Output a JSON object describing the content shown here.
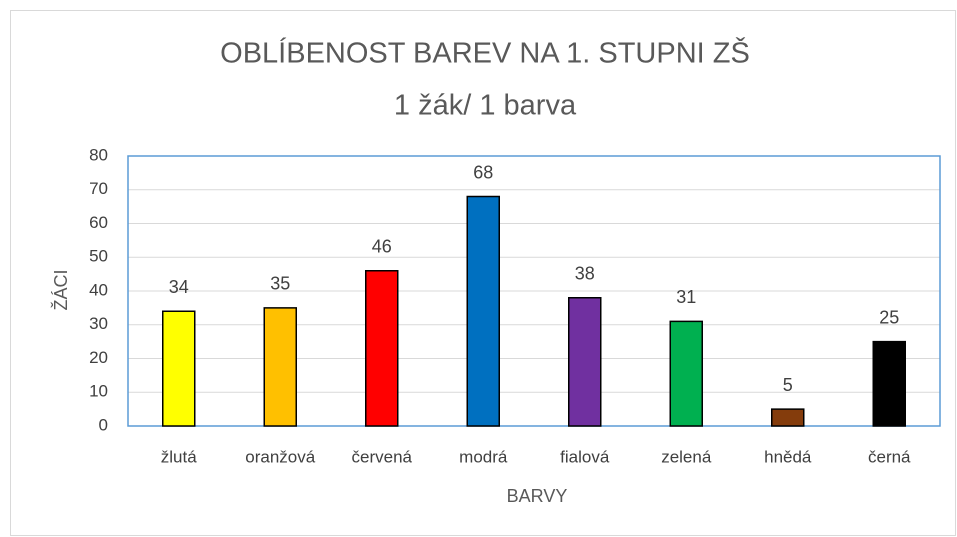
{
  "chart_data": {
    "type": "bar",
    "title": "OBLÍBENOST BAREV NA 1. STUPNI ZŠ",
    "subtitle": "1 žák/ 1 barva",
    "x_label": "BARVY",
    "y_label": "ŽÁCI",
    "categories": [
      "žlutá",
      "oranžová",
      "červená",
      "modrá",
      "fialová",
      "zelená",
      "hnědá",
      "černá"
    ],
    "values": [
      34,
      35,
      46,
      68,
      38,
      31,
      5,
      25
    ],
    "colors": [
      "#ffff00",
      "#ffc000",
      "#ff0000",
      "#0070c0",
      "#7030a0",
      "#00b050",
      "#843c0c",
      "#000000"
    ],
    "ylim": [
      0,
      80
    ],
    "yticks": [
      0,
      10,
      20,
      30,
      40,
      50,
      60,
      70,
      80
    ],
    "grid": true
  }
}
